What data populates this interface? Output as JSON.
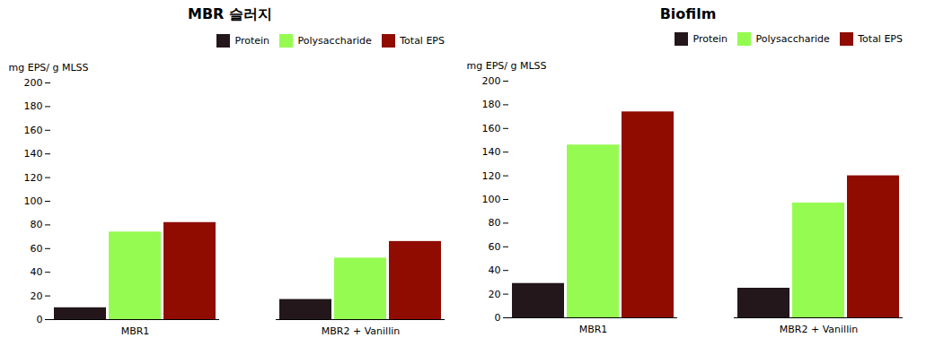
{
  "chart_data": [
    {
      "type": "bar",
      "title": "MBR 슬러지",
      "ylabel": "mg EPS/ g MLSS",
      "categories": [
        "MBR1",
        "MBR2 + Vanillin"
      ],
      "series": [
        {
          "name": "Protein",
          "values": [
            10,
            17
          ]
        },
        {
          "name": "Polysaccharide",
          "values": [
            74,
            52
          ]
        },
        {
          "name": "Total EPS",
          "values": [
            82,
            66
          ]
        }
      ],
      "ylim": [
        0,
        200
      ],
      "yticks": [
        0,
        20,
        40,
        60,
        80,
        100,
        120,
        140,
        160,
        180,
        200
      ],
      "grid": false,
      "legend": "upper right"
    },
    {
      "type": "bar",
      "title": "Biofilm",
      "ylabel": "mg EPS/ g MLSS",
      "categories": [
        "MBR1",
        "MBR2 + Vanillin"
      ],
      "series": [
        {
          "name": "Protein",
          "values": [
            29,
            25
          ]
        },
        {
          "name": "Polysaccharide",
          "values": [
            146,
            97
          ]
        },
        {
          "name": "Total EPS",
          "values": [
            174,
            120
          ]
        }
      ],
      "ylim": [
        0,
        200
      ],
      "yticks": [
        0,
        20,
        40,
        60,
        80,
        100,
        120,
        140,
        160,
        180,
        200
      ],
      "grid": false,
      "legend": "upper right"
    }
  ]
}
